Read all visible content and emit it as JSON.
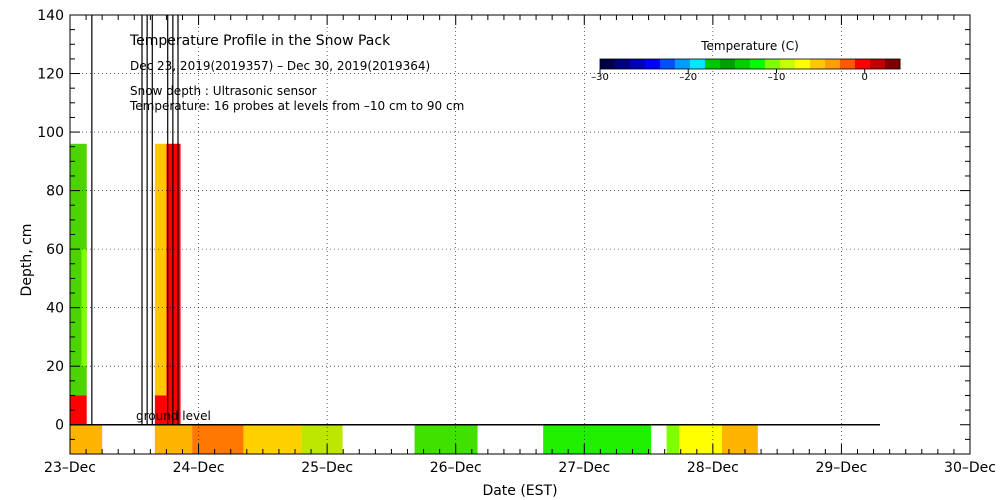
{
  "chart_data": {
    "type": "heatmap",
    "title": "Temperature Profile in the Snow Pack",
    "subtitle": "Dec 23, 2019(2019357) – Dec 30, 2019(2019364)",
    "note_depth": "Snow depth : Ultrasonic sensor",
    "note_temp": "Temperature: 16 probes at levels from –10 cm to 90 cm",
    "xlabel": "Date (EST)",
    "ylabel": "Depth, cm",
    "x_ticks": [
      "23–Dec",
      "24–Dec",
      "25–Dec",
      "26–Dec",
      "27–Dec",
      "28–Dec",
      "29–Dec",
      "30–Dec"
    ],
    "y_ticks": [
      "0",
      "20",
      "40",
      "60",
      "80",
      "100",
      "120",
      "140"
    ],
    "ylim": [
      -10,
      140
    ],
    "xlim_days": [
      0,
      7
    ],
    "ground_label": "ground level",
    "colorbar": {
      "title": "Temperature (C)",
      "ticks": [
        "–30",
        "–20",
        "–10",
        "0"
      ],
      "tick_values": [
        -30,
        -20,
        -10,
        0
      ],
      "range": [
        -30,
        4
      ],
      "colors": [
        "#00004a",
        "#000080",
        "#0000bb",
        "#0000ff",
        "#0050ff",
        "#009cff",
        "#00e8ff",
        "#00c800",
        "#00a000",
        "#00d000",
        "#00ff00",
        "#80ff00",
        "#c8ff00",
        "#ffff00",
        "#ffc800",
        "#ffa000",
        "#ff5a00",
        "#ff0000",
        "#c00000",
        "#800000"
      ]
    },
    "cells": [
      {
        "x0": 0.0,
        "x1": 0.13,
        "y0": 10,
        "y1": 96,
        "color": "#4cd400"
      },
      {
        "x0": 0.09,
        "x1": 0.13,
        "y0": 20,
        "y1": 60,
        "color": "#80ff00"
      },
      {
        "x0": 0.0,
        "x1": 0.13,
        "y0": 0,
        "y1": 10,
        "color": "#ff0000"
      },
      {
        "x0": 0.0,
        "x1": 0.25,
        "y0": -10,
        "y1": 0,
        "color": "#ffb400"
      },
      {
        "x0": 0.66,
        "x1": 0.75,
        "y0": 10,
        "y1": 96,
        "color": "#ffc800"
      },
      {
        "x0": 0.75,
        "x1": 0.86,
        "y0": 10,
        "y1": 96,
        "color": "#ff0000"
      },
      {
        "x0": 0.66,
        "x1": 0.86,
        "y0": 0,
        "y1": 10,
        "color": "#ff0000"
      },
      {
        "x0": 0.66,
        "x1": 0.95,
        "y0": -10,
        "y1": 0,
        "color": "#ffb400"
      },
      {
        "x0": 0.95,
        "x1": 1.35,
        "y0": -10,
        "y1": 0,
        "color": "#ff7800"
      },
      {
        "x0": 1.35,
        "x1": 1.8,
        "y0": -10,
        "y1": 0,
        "color": "#ffd000"
      },
      {
        "x0": 1.8,
        "x1": 2.12,
        "y0": -10,
        "y1": 0,
        "color": "#bce800"
      },
      {
        "x0": 2.68,
        "x1": 3.17,
        "y0": -10,
        "y1": 0,
        "color": "#40e000"
      },
      {
        "x0": 3.68,
        "x1": 4.52,
        "y0": -10,
        "y1": 0,
        "color": "#20f000"
      },
      {
        "x0": 4.64,
        "x1": 4.74,
        "y0": -10,
        "y1": 0,
        "color": "#80ff00"
      },
      {
        "x0": 4.74,
        "x1": 5.07,
        "y0": -10,
        "y1": 0,
        "color": "#ffff00"
      },
      {
        "x0": 5.07,
        "x1": 5.35,
        "y0": -10,
        "y1": 0,
        "color": "#ffb400"
      }
    ],
    "snow_depth_traces": [
      {
        "x": [
          0.17,
          0.17
        ],
        "y": [
          140,
          0
        ]
      },
      {
        "x": [
          0.56,
          0.56
        ],
        "y": [
          140,
          0
        ]
      },
      {
        "x": [
          0.6,
          0.6
        ],
        "y": [
          140,
          0
        ]
      },
      {
        "x": [
          0.64,
          0.64
        ],
        "y": [
          140,
          0
        ]
      },
      {
        "x": [
          0.76,
          0.76
        ],
        "y": [
          140,
          0
        ]
      },
      {
        "x": [
          0.8,
          0.8
        ],
        "y": [
          140,
          0
        ]
      },
      {
        "x": [
          0.84,
          0.84
        ],
        "y": [
          140,
          0
        ]
      }
    ]
  }
}
